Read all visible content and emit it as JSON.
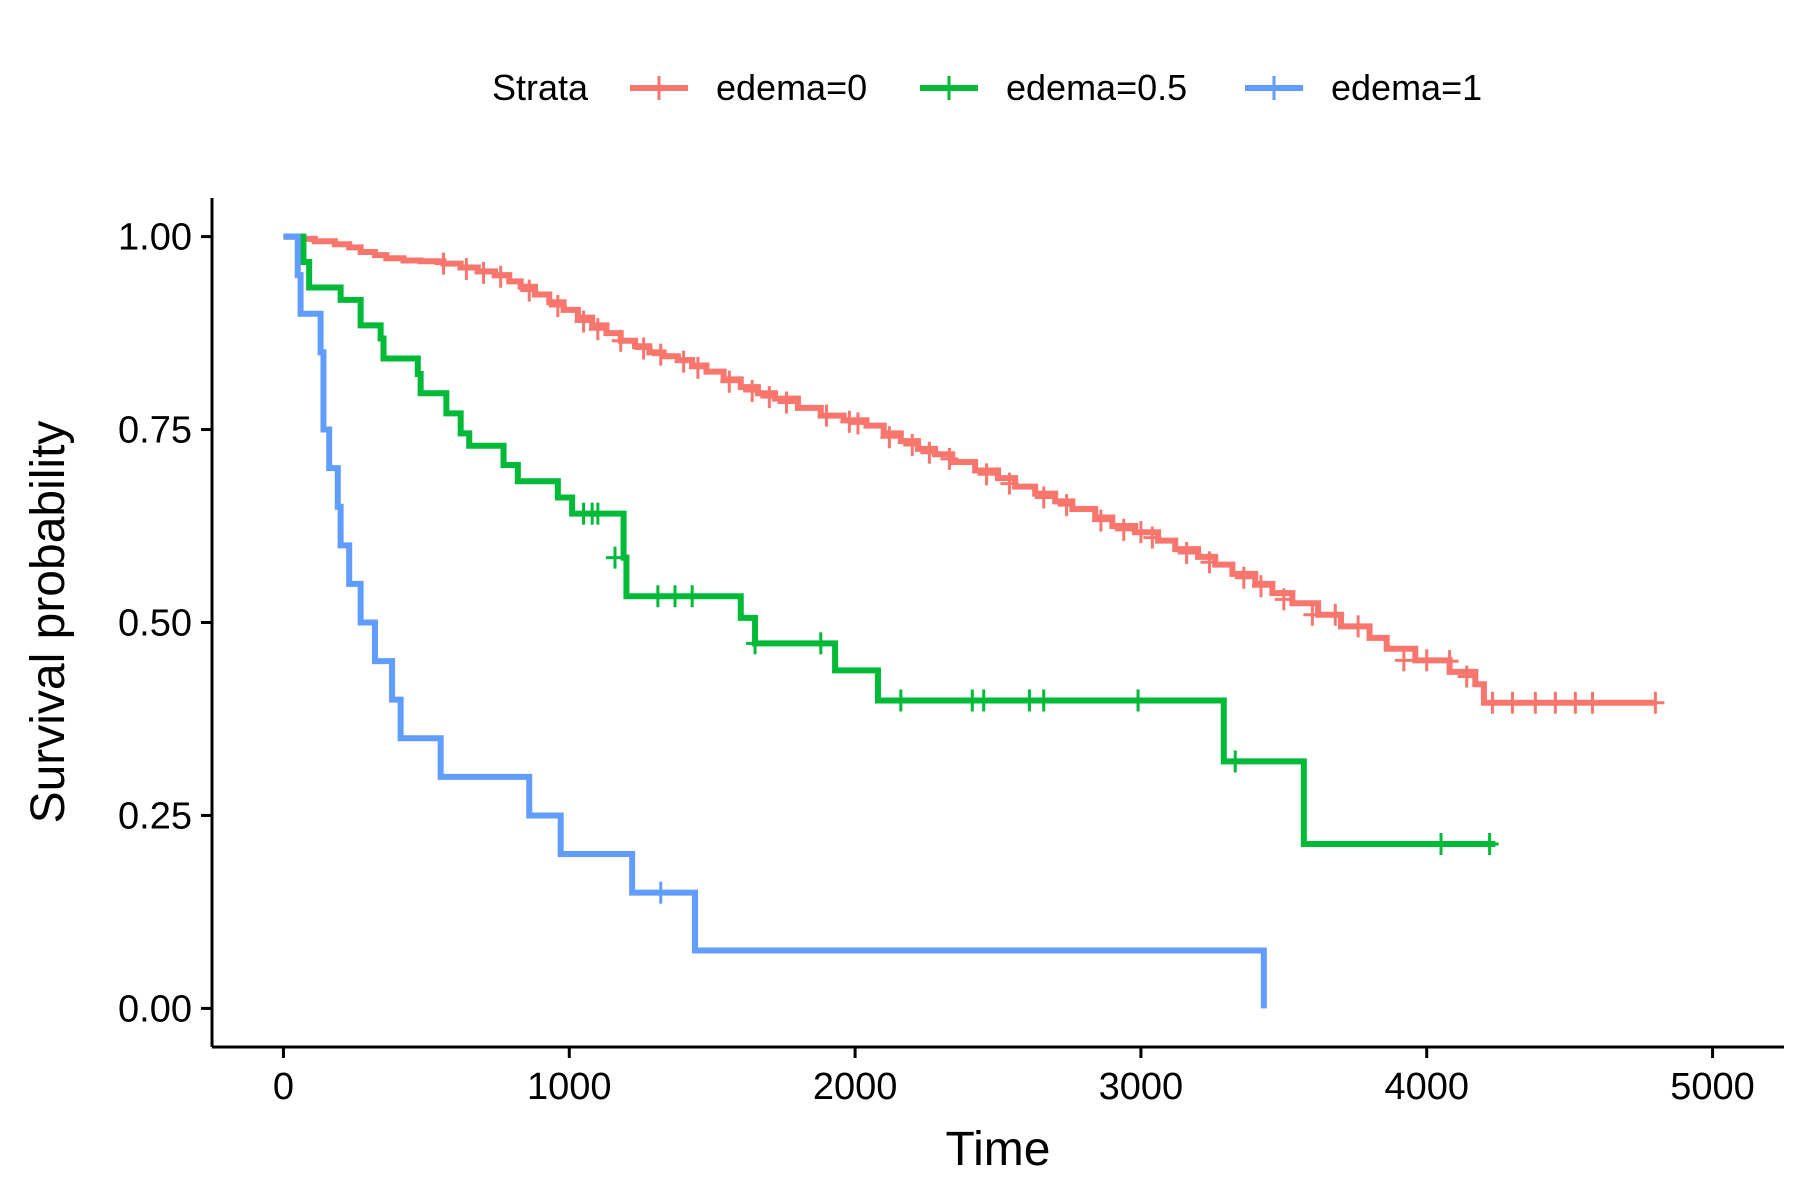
{
  "chart_data": {
    "type": "line",
    "subtype": "kaplan-meier step",
    "title": "",
    "xlabel": "Time",
    "ylabel": "Survival probability",
    "xlim": [
      -250,
      5250
    ],
    "ylim": [
      -0.05,
      1.05
    ],
    "xticks": [
      0,
      1000,
      2000,
      3000,
      4000,
      5000
    ],
    "xtick_labels": [
      "0",
      "1000",
      "2000",
      "3000",
      "4000",
      "5000"
    ],
    "yticks": [
      0,
      0.25,
      0.5,
      0.75,
      1.0
    ],
    "ytick_labels": [
      "0.00",
      "0.25",
      "0.50",
      "0.75",
      "1.00"
    ],
    "grid": false,
    "legend": {
      "position": "top",
      "title": "Strata",
      "entries": [
        "edema=0",
        "edema=0.5",
        "edema=1"
      ]
    },
    "series": [
      {
        "name": "edema=0",
        "color": "#F8766D",
        "steps": [
          [
            0,
            1.0
          ],
          [
            60,
            0.997
          ],
          [
            110,
            0.994
          ],
          [
            180,
            0.99
          ],
          [
            230,
            0.986
          ],
          [
            270,
            0.98
          ],
          [
            320,
            0.976
          ],
          [
            360,
            0.972
          ],
          [
            420,
            0.969
          ],
          [
            480,
            0.968
          ],
          [
            560,
            0.965
          ],
          [
            620,
            0.96
          ],
          [
            680,
            0.955
          ],
          [
            740,
            0.95
          ],
          [
            790,
            0.942
          ],
          [
            830,
            0.935
          ],
          [
            880,
            0.925
          ],
          [
            930,
            0.915
          ],
          [
            980,
            0.905
          ],
          [
            1030,
            0.895
          ],
          [
            1080,
            0.885
          ],
          [
            1130,
            0.875
          ],
          [
            1180,
            0.865
          ],
          [
            1230,
            0.858
          ],
          [
            1280,
            0.85
          ],
          [
            1330,
            0.845
          ],
          [
            1380,
            0.84
          ],
          [
            1430,
            0.833
          ],
          [
            1480,
            0.825
          ],
          [
            1540,
            0.815
          ],
          [
            1600,
            0.805
          ],
          [
            1660,
            0.797
          ],
          [
            1720,
            0.79
          ],
          [
            1800,
            0.778
          ],
          [
            1880,
            0.768
          ],
          [
            1960,
            0.762
          ],
          [
            2040,
            0.755
          ],
          [
            2100,
            0.745
          ],
          [
            2160,
            0.735
          ],
          [
            2220,
            0.725
          ],
          [
            2280,
            0.718
          ],
          [
            2340,
            0.708
          ],
          [
            2420,
            0.697
          ],
          [
            2500,
            0.687
          ],
          [
            2560,
            0.676
          ],
          [
            2630,
            0.667
          ],
          [
            2700,
            0.657
          ],
          [
            2760,
            0.647
          ],
          [
            2840,
            0.636
          ],
          [
            2900,
            0.625
          ],
          [
            2980,
            0.617
          ],
          [
            3060,
            0.606
          ],
          [
            3120,
            0.595
          ],
          [
            3200,
            0.585
          ],
          [
            3260,
            0.575
          ],
          [
            3320,
            0.563
          ],
          [
            3400,
            0.55
          ],
          [
            3460,
            0.538
          ],
          [
            3530,
            0.525
          ],
          [
            3620,
            0.51
          ],
          [
            3700,
            0.495
          ],
          [
            3800,
            0.48
          ],
          [
            3860,
            0.466
          ],
          [
            3960,
            0.451
          ],
          [
            4080,
            0.436
          ],
          [
            4170,
            0.42
          ],
          [
            4200,
            0.396
          ],
          [
            4800,
            0.396
          ]
        ],
        "censored": [
          [
            560,
            0.965
          ],
          [
            640,
            0.958
          ],
          [
            700,
            0.953
          ],
          [
            760,
            0.948
          ],
          [
            860,
            0.93
          ],
          [
            960,
            0.91
          ],
          [
            1050,
            0.89
          ],
          [
            1100,
            0.88
          ],
          [
            1180,
            0.865
          ],
          [
            1260,
            0.855
          ],
          [
            1320,
            0.847
          ],
          [
            1400,
            0.838
          ],
          [
            1450,
            0.83
          ],
          [
            1560,
            0.812
          ],
          [
            1640,
            0.8
          ],
          [
            1700,
            0.792
          ],
          [
            1760,
            0.785
          ],
          [
            1900,
            0.768
          ],
          [
            1980,
            0.76
          ],
          [
            2010,
            0.758
          ],
          [
            2120,
            0.74
          ],
          [
            2200,
            0.73
          ],
          [
            2260,
            0.72
          ],
          [
            2330,
            0.712
          ],
          [
            2460,
            0.692
          ],
          [
            2540,
            0.68
          ],
          [
            2660,
            0.662
          ],
          [
            2740,
            0.652
          ],
          [
            2860,
            0.632
          ],
          [
            2940,
            0.62
          ],
          [
            3000,
            0.617
          ],
          [
            3040,
            0.61
          ],
          [
            3160,
            0.59
          ],
          [
            3240,
            0.578
          ],
          [
            3360,
            0.558
          ],
          [
            3420,
            0.547
          ],
          [
            3500,
            0.53
          ],
          [
            3600,
            0.51
          ],
          [
            3680,
            0.51
          ],
          [
            3760,
            0.495
          ],
          [
            3920,
            0.451
          ],
          [
            4000,
            0.451
          ],
          [
            4080,
            0.45
          ],
          [
            4140,
            0.43
          ],
          [
            4230,
            0.396
          ],
          [
            4300,
            0.396
          ],
          [
            4380,
            0.396
          ],
          [
            4450,
            0.396
          ],
          [
            4520,
            0.396
          ],
          [
            4580,
            0.396
          ],
          [
            4800,
            0.396
          ]
        ]
      },
      {
        "name": "edema=0.5",
        "color": "#00BA38",
        "steps": [
          [
            0,
            1.0
          ],
          [
            70,
            0.967
          ],
          [
            90,
            0.934
          ],
          [
            200,
            0.918
          ],
          [
            270,
            0.885
          ],
          [
            340,
            0.868
          ],
          [
            350,
            0.842
          ],
          [
            470,
            0.822
          ],
          [
            480,
            0.797
          ],
          [
            570,
            0.771
          ],
          [
            620,
            0.745
          ],
          [
            650,
            0.729
          ],
          [
            770,
            0.704
          ],
          [
            820,
            0.683
          ],
          [
            960,
            0.662
          ],
          [
            1010,
            0.641
          ],
          [
            1190,
            0.584
          ],
          [
            1200,
            0.534
          ],
          [
            1600,
            0.506
          ],
          [
            1650,
            0.473
          ],
          [
            1930,
            0.438
          ],
          [
            2080,
            0.399
          ],
          [
            3290,
            0.32
          ],
          [
            3570,
            0.213
          ],
          [
            4240,
            0.213
          ]
        ],
        "censored": [
          [
            1050,
            0.641
          ],
          [
            1080,
            0.641
          ],
          [
            1100,
            0.641
          ],
          [
            1160,
            0.584
          ],
          [
            1310,
            0.534
          ],
          [
            1370,
            0.534
          ],
          [
            1430,
            0.534
          ],
          [
            1650,
            0.473
          ],
          [
            1880,
            0.473
          ],
          [
            2160,
            0.399
          ],
          [
            2410,
            0.399
          ],
          [
            2450,
            0.399
          ],
          [
            2610,
            0.399
          ],
          [
            2660,
            0.399
          ],
          [
            2990,
            0.399
          ],
          [
            3330,
            0.32
          ],
          [
            4050,
            0.213
          ],
          [
            4220,
            0.213
          ]
        ]
      },
      {
        "name": "edema=1",
        "color": "#619CFF",
        "steps": [
          [
            0,
            1.0
          ],
          [
            50,
            0.95
          ],
          [
            60,
            0.9
          ],
          [
            130,
            0.85
          ],
          [
            140,
            0.75
          ],
          [
            160,
            0.7
          ],
          [
            190,
            0.65
          ],
          [
            200,
            0.6
          ],
          [
            230,
            0.55
          ],
          [
            270,
            0.5
          ],
          [
            320,
            0.45
          ],
          [
            380,
            0.4
          ],
          [
            410,
            0.35
          ],
          [
            550,
            0.3
          ],
          [
            860,
            0.25
          ],
          [
            970,
            0.2
          ],
          [
            1220,
            0.15
          ],
          [
            1440,
            0.075
          ],
          [
            3430,
            0.075
          ],
          [
            3430,
            0.0
          ]
        ],
        "censored": [
          [
            1320,
            0.15
          ]
        ]
      }
    ]
  }
}
